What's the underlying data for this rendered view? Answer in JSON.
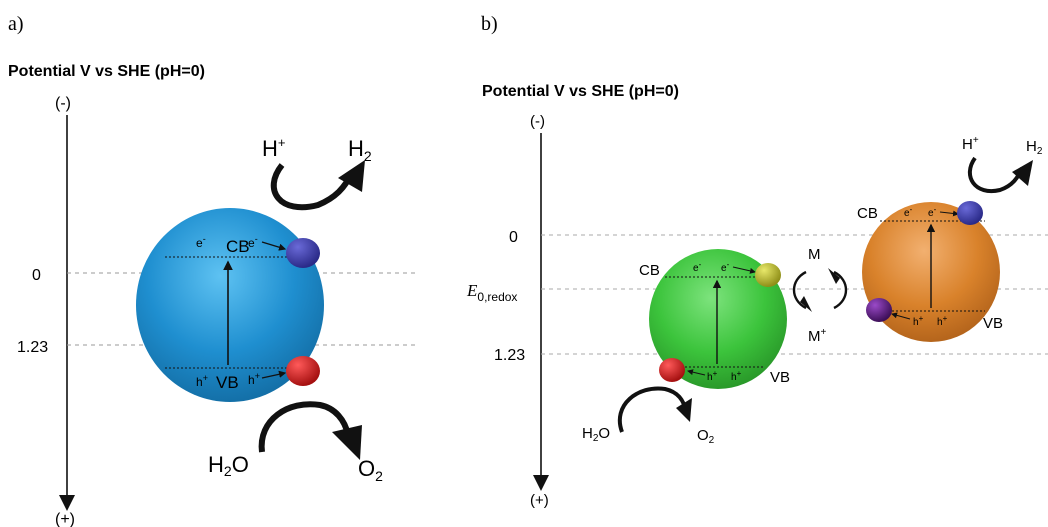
{
  "panel_a": {
    "label": "a)",
    "axis_title": "Potential V vs SHE (pH=0)",
    "axis_top": "(-)",
    "axis_bottom": "(+)",
    "ticks": [
      "0",
      "1.23"
    ],
    "cb_label": "CB",
    "vb_label": "VB",
    "electron": "e",
    "hole": "h",
    "minus": "-",
    "plus": "+",
    "h_plus": "H",
    "h2": "H",
    "sub2": "2",
    "h2o_h": "H",
    "h2o_o": "O",
    "o2": "O",
    "colors": {
      "particle": "#1e88c8",
      "electron_ball": "#33349a",
      "hole_ball": "#cc1c1c"
    }
  },
  "panel_b": {
    "label": "b)",
    "axis_title": "Potential V vs SHE (pH=0)",
    "axis_top": "(-)",
    "axis_bottom": "(+)",
    "ticks": [
      "0",
      "1.23"
    ],
    "e_redox_main": "E",
    "e_redox_sub": "0,redox",
    "cb_label": "CB",
    "vb_label": "VB",
    "mediator": "M",
    "mediator_plus": "M",
    "electron": "e",
    "hole": "h",
    "minus": "-",
    "plus": "+",
    "h_plus": "H",
    "h2": "H",
    "sub2": "2",
    "h2o_h": "H",
    "h2o_o": "O",
    "o2": "O",
    "colors": {
      "green_particle": "#3cc43c",
      "orange_particle": "#d9822b",
      "yellow_ball": "#bcbc2a",
      "purple_ball": "#5a1a7a",
      "blue_ball": "#2c3ba0",
      "red_ball": "#c41818"
    }
  }
}
